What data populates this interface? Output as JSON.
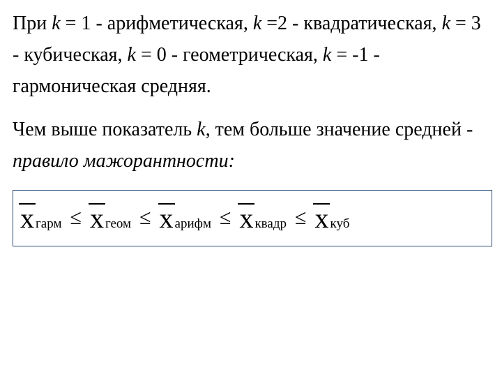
{
  "para1": {
    "t1": "При ",
    "k1": "k",
    "t2": " = 1 - арифметическая, ",
    "k2": "k",
    "t3": " =2 - квадратическая, ",
    "k3": "k",
    "t4": " = 3 - кубическая, ",
    "k4": "k",
    "t5": " = 0 - геометрическая, ",
    "k5": "k",
    "t6": " = -1 - гармоническая средняя."
  },
  "para2": {
    "t1": "Чем выше показатель ",
    "k1": "k,",
    "t2": " тем больше значение средней - ",
    "rule": "правило мажорантности:"
  },
  "formula": {
    "x": "x",
    "sub1": "гарм",
    "sub2": "геом",
    "sub3": "арифм",
    "sub4": "квадр",
    "sub5": "куб",
    "leq": "≤"
  },
  "style": {
    "text_color": "#000000",
    "bg_color": "#ffffff",
    "border_color": "#2a4a7a",
    "body_fontsize": 28,
    "formula_x_fontsize": 40,
    "formula_sub_fontsize": 19
  }
}
